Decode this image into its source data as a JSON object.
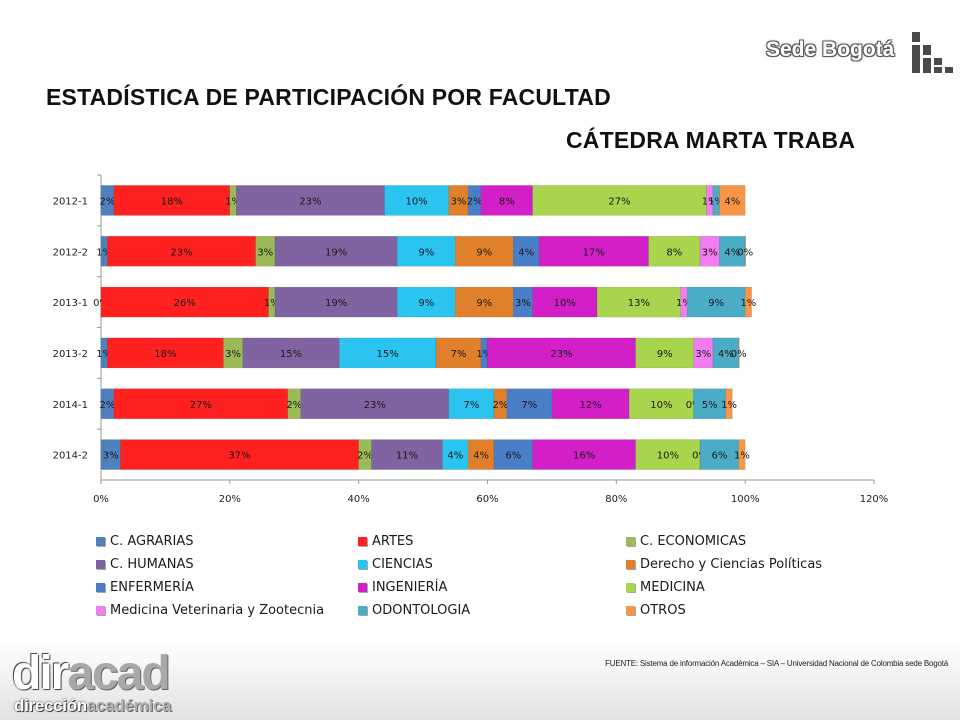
{
  "header": {
    "brand": "Sede Bogotá",
    "title": "ESTADÍSTICA DE PARTICIPACIÓN POR FACULTAD",
    "subtitle": "CÁTEDRA MARTA TRABA"
  },
  "chart_data": {
    "type": "bar",
    "orientation": "horizontal",
    "stacked": true,
    "categories": [
      "2012-1",
      "2012-2",
      "2013-1",
      "2013-2",
      "2014-1",
      "2014-2"
    ],
    "x_ticks": [
      "0%",
      "20%",
      "40%",
      "60%",
      "80%",
      "100%",
      "120%"
    ],
    "xlim": [
      0,
      120
    ],
    "grid": false,
    "legend_position": "bottom",
    "series": [
      {
        "name": "C. AGRARIAS",
        "color": "#4f81bd",
        "values": [
          2,
          1,
          0,
          1,
          2,
          3
        ],
        "labels": [
          "2%",
          "1%",
          "0%",
          "1%",
          "2%",
          "3%"
        ]
      },
      {
        "name": "ARTES",
        "color": "#ff2020",
        "values": [
          18,
          23,
          26,
          18,
          27,
          37
        ],
        "labels": [
          "18%",
          "23%",
          "26%",
          "18%",
          "27%",
          "37%"
        ]
      },
      {
        "name": "C. ECONOMICAS",
        "color": "#9bbb59",
        "values": [
          1,
          3,
          1,
          3,
          2,
          2
        ],
        "labels": [
          "1%",
          "3%",
          "1%",
          "3%",
          "2%",
          "2%"
        ]
      },
      {
        "name": "C. HUMANAS",
        "color": "#8064a2",
        "values": [
          23,
          19,
          19,
          15,
          23,
          11
        ],
        "labels": [
          "23%",
          "19%",
          "19%",
          "15%",
          "23%",
          "11%"
        ]
      },
      {
        "name": "CIENCIAS",
        "color": "#2bc3f0",
        "values": [
          10,
          9,
          9,
          15,
          7,
          4
        ],
        "labels": [
          "10%",
          "9%",
          "9%",
          "15%",
          "7%",
          "4%"
        ]
      },
      {
        "name": "Derecho y Ciencias Políticas",
        "color": "#e0802a",
        "values": [
          3,
          9,
          9,
          7,
          2,
          4
        ],
        "labels": [
          "3%",
          "9%",
          "9%",
          "7%",
          "2%",
          "4%"
        ]
      },
      {
        "name": "ENFERMERÍA",
        "color": "#4a7fc8",
        "values": [
          2,
          4,
          3,
          1,
          7,
          6
        ],
        "labels": [
          "2%",
          "4%",
          "3%",
          "1%",
          "7%",
          "6%"
        ]
      },
      {
        "name": "INGENIERÍA",
        "color": "#d21fc8",
        "values": [
          8,
          17,
          10,
          23,
          12,
          16
        ],
        "labels": [
          "8%",
          "17%",
          "10%",
          "23%",
          "12%",
          "16%"
        ]
      },
      {
        "name": "MEDICINA",
        "color": "#a9d44e",
        "values": [
          27,
          8,
          13,
          9,
          10,
          10
        ],
        "labels": [
          "27%",
          "8%",
          "13%",
          "9%",
          "10%",
          "10%"
        ]
      },
      {
        "name": "Medicina Veterinaria y Zootecnia",
        "color": "#f27df2",
        "values": [
          1,
          3,
          1,
          3,
          0,
          0
        ],
        "labels": [
          "1%",
          "3%",
          "1%",
          "3%",
          "0%",
          "0%"
        ]
      },
      {
        "name": "ODONTOLOGIA",
        "color": "#4bacc6",
        "values": [
          1,
          4,
          9,
          4,
          5,
          6
        ],
        "labels": [
          "1%",
          "4%",
          "9%",
          "4%",
          "5%",
          "6%"
        ]
      },
      {
        "name": "OTROS",
        "color": "#f79646",
        "values": [
          4,
          0,
          1,
          0,
          1,
          1
        ],
        "labels": [
          "4%",
          "0%",
          "1%",
          "0%",
          "1%",
          "1%"
        ]
      }
    ]
  },
  "source_note": "FUENTE: Sistema de información Académica – SIA – Universidad Nacional de Colombia sede Bogotá",
  "footer_logo": {
    "big_a": "dir",
    "big_b": "acad",
    "small_a": "dirección",
    "small_b": "académica"
  }
}
